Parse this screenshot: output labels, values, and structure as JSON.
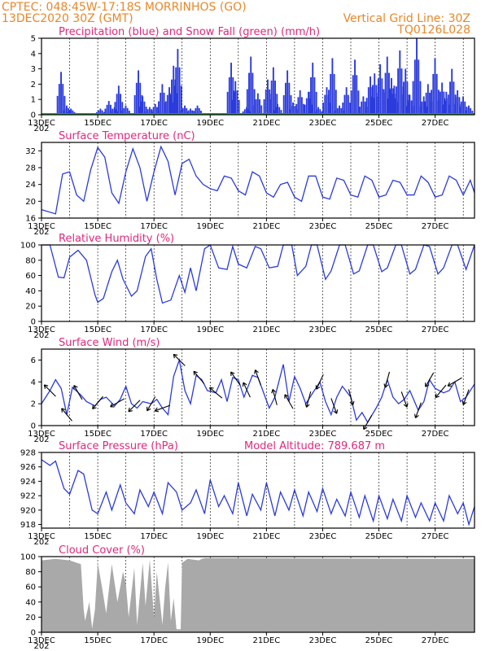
{
  "header": {
    "line1": "CPTEC:   048:45W-17:18S   MORRINHOS (GO)",
    "line2_left": "13DEC2020 30Z (GMT)",
    "line2_right": "Vertical Grid Line: 30Z",
    "line3_right": "TQ0126L028"
  },
  "colors": {
    "header": "#e8872a",
    "title": "#e0287c",
    "line": "#2b3bdc",
    "snow": "#22a33a",
    "cloud": "#a9a9a9",
    "grid": "#000000"
  },
  "chart_data": [
    {
      "type": "bar",
      "title": "Precipitation (blue) and Snow Fall (green) (mm/h)",
      "ylim": [
        0,
        5
      ],
      "yticks": [
        0,
        1,
        2,
        3,
        4,
        5
      ],
      "xticks": [
        "13DEC",
        "15DEC",
        "17DEC",
        "19DEC",
        "21DEC",
        "23DEC",
        "25DEC",
        "27DEC"
      ],
      "x_first_tick_extra": "202",
      "x_range_days": [
        0,
        15.4
      ],
      "snow_values": 0,
      "precip_peaks": [
        [
          0.7,
          2.8
        ],
        [
          0.9,
          0.6
        ],
        [
          1.05,
          0.4
        ],
        [
          2.1,
          0.4
        ],
        [
          2.4,
          0.9
        ],
        [
          2.6,
          0.5
        ],
        [
          2.75,
          1.9
        ],
        [
          3.0,
          0.6
        ],
        [
          3.45,
          2.9
        ],
        [
          3.6,
          1.2
        ],
        [
          3.85,
          0.5
        ],
        [
          4.05,
          0.7
        ],
        [
          4.3,
          2.0
        ],
        [
          4.55,
          1.8
        ],
        [
          4.7,
          3.2
        ],
        [
          4.85,
          4.3
        ],
        [
          5.1,
          0.6
        ],
        [
          5.3,
          0.4
        ],
        [
          5.55,
          0.6
        ],
        [
          6.75,
          3.4
        ],
        [
          6.9,
          2.2
        ],
        [
          7.3,
          0.5
        ],
        [
          7.45,
          3.8
        ],
        [
          7.7,
          1.4
        ],
        [
          8.05,
          2.3
        ],
        [
          8.25,
          3.1
        ],
        [
          8.4,
          0.7
        ],
        [
          8.75,
          2.9
        ],
        [
          8.95,
          0.8
        ],
        [
          9.2,
          1.6
        ],
        [
          9.5,
          1.5
        ],
        [
          9.65,
          3.4
        ],
        [
          9.85,
          0.5
        ],
        [
          10.15,
          1.8
        ],
        [
          10.35,
          3.7
        ],
        [
          10.6,
          0.6
        ],
        [
          10.85,
          1.8
        ],
        [
          11.15,
          3.6
        ],
        [
          11.45,
          1.2
        ],
        [
          11.7,
          2.5
        ],
        [
          11.85,
          2.7
        ],
        [
          12.05,
          3.3
        ],
        [
          12.3,
          3.8
        ],
        [
          12.45,
          2.4
        ],
        [
          12.55,
          1.9
        ],
        [
          12.75,
          4.2
        ],
        [
          12.95,
          3.0
        ],
        [
          13.1,
          1.3
        ],
        [
          13.35,
          5.0
        ],
        [
          13.6,
          1.2
        ],
        [
          13.75,
          2.0
        ],
        [
          14.0,
          3.7
        ],
        [
          14.25,
          2.1
        ],
        [
          14.4,
          1.5
        ],
        [
          14.6,
          3.0
        ],
        [
          14.8,
          1.6
        ],
        [
          15.0,
          1.2
        ],
        [
          15.2,
          0.6
        ]
      ]
    },
    {
      "type": "line",
      "title": "Surface Temperature (nC)",
      "ylim": [
        16,
        34
      ],
      "yticks": [
        16,
        20,
        24,
        28,
        32
      ],
      "xticks": [
        "13DEC",
        "15DEC",
        "17DEC",
        "19DEC",
        "21DEC",
        "23DEC",
        "25DEC",
        "27DEC"
      ],
      "x_first_tick_extra": "202",
      "series": [
        {
          "x": [
            0,
            0.5,
            0.75,
            1.0,
            1.25,
            1.5,
            1.75,
            2.0,
            2.25,
            2.5,
            2.75,
            3.0,
            3.25,
            3.5,
            3.75,
            4.0,
            4.25,
            4.5,
            4.75,
            5.0,
            5.25,
            5.5,
            5.75,
            6.0,
            6.25,
            6.5,
            6.75,
            7.0,
            7.25,
            7.5,
            7.75,
            8.0,
            8.25,
            8.5,
            8.75,
            9.0,
            9.25,
            9.5,
            9.75,
            10.0,
            10.25,
            10.5,
            10.75,
            11.0,
            11.25,
            11.5,
            11.75,
            12.0,
            12.25,
            12.5,
            12.75,
            13.0,
            13.25,
            13.5,
            13.75,
            14.0,
            14.25,
            14.5,
            14.75,
            15.0,
            15.25,
            15.4
          ],
          "y": [
            18,
            17,
            26.5,
            27,
            21.5,
            20,
            27.5,
            32.8,
            30.5,
            22,
            19.5,
            27,
            32.5,
            28,
            20,
            27,
            33,
            29.5,
            21.5,
            29,
            30,
            26,
            24,
            23,
            22.5,
            26,
            25.5,
            22.5,
            21.5,
            27,
            26,
            22,
            21,
            24,
            24.5,
            21,
            20,
            26,
            26,
            21,
            20.5,
            25.5,
            25,
            21.5,
            21,
            26,
            25,
            21,
            21.5,
            25,
            24.5,
            21.5,
            21.5,
            26,
            24.5,
            21,
            21.5,
            26,
            25,
            21.5,
            25,
            22
          ]
        }
      ]
    },
    {
      "type": "line",
      "title": "Relative Humidity (%)",
      "ylim": [
        0,
        100
      ],
      "yticks": [
        0,
        20,
        40,
        60,
        80,
        100
      ],
      "xticks": [
        "13DEC",
        "15DEC",
        "17DEC",
        "19DEC",
        "21DEC",
        "23DEC",
        "25DEC",
        "27DEC"
      ],
      "x_first_tick_extra": "202",
      "series": [
        {
          "x": [
            0,
            0.3,
            0.6,
            0.8,
            1.0,
            1.3,
            1.6,
            1.9,
            2.0,
            2.2,
            2.5,
            2.7,
            2.9,
            3.2,
            3.4,
            3.7,
            3.9,
            4.1,
            4.3,
            4.6,
            4.9,
            5.1,
            5.3,
            5.5,
            5.8,
            6.0,
            6.3,
            6.6,
            6.8,
            7.0,
            7.3,
            7.6,
            7.8,
            8.1,
            8.4,
            8.6,
            8.9,
            9.1,
            9.4,
            9.6,
            9.8,
            10.1,
            10.3,
            10.6,
            10.8,
            11.1,
            11.3,
            11.6,
            11.8,
            12.1,
            12.3,
            12.6,
            12.8,
            13.1,
            13.3,
            13.6,
            13.8,
            14.1,
            14.3,
            14.6,
            14.8,
            15.1,
            15.4
          ],
          "y": [
            100,
            100,
            58,
            57,
            84,
            93,
            80,
            35,
            25,
            30,
            65,
            80,
            55,
            33,
            40,
            85,
            95,
            55,
            24,
            28,
            60,
            38,
            70,
            40,
            95,
            100,
            70,
            68,
            98,
            75,
            70,
            98,
            95,
            70,
            72,
            100,
            100,
            60,
            72,
            100,
            100,
            55,
            66,
            100,
            100,
            62,
            66,
            100,
            100,
            65,
            70,
            100,
            100,
            62,
            68,
            100,
            98,
            62,
            70,
            100,
            100,
            68,
            100
          ]
        }
      ]
    },
    {
      "type": "line",
      "title": "Surface Wind (m/s)",
      "ylim": [
        0,
        7
      ],
      "yticks": [
        0,
        2,
        4,
        6
      ],
      "xticks": [
        "13DEC",
        "15DEC",
        "17DEC",
        "19DEC",
        "21DEC",
        "23DEC",
        "25DEC",
        "27DEC"
      ],
      "x_first_tick_extra": "202",
      "series": [
        {
          "x": [
            0,
            0.3,
            0.5,
            0.7,
            0.9,
            1.1,
            1.4,
            1.6,
            1.9,
            2.1,
            2.3,
            2.6,
            2.8,
            3.0,
            3.2,
            3.4,
            3.6,
            3.9,
            4.1,
            4.3,
            4.5,
            4.7,
            4.9,
            5.1,
            5.3,
            5.5,
            5.7,
            5.9,
            6.2,
            6.4,
            6.6,
            6.8,
            7.0,
            7.2,
            7.5,
            7.7,
            7.9,
            8.1,
            8.3,
            8.6,
            8.8,
            9.0,
            9.2,
            9.4,
            9.6,
            9.9,
            10.1,
            10.3,
            10.5,
            10.7,
            11.0,
            11.2,
            11.4,
            11.6,
            11.9,
            12.1,
            12.3,
            12.5,
            12.7,
            12.9,
            13.1,
            13.4,
            13.6,
            13.8,
            14.0,
            14.3,
            14.5,
            14.7,
            14.9,
            15.1,
            15.4
          ],
          "y": [
            2,
            3.2,
            4.2,
            3.4,
            1.0,
            3.5,
            2.8,
            2.2,
            1.8,
            2.4,
            2.6,
            1.8,
            2.4,
            3.6,
            2.0,
            1.6,
            2.2,
            2.0,
            2.4,
            1.6,
            1.0,
            4.5,
            6.0,
            3.2,
            2.0,
            4.6,
            4.2,
            3.2,
            3.0,
            4.2,
            2.2,
            4.4,
            4.2,
            2.6,
            4.6,
            4.4,
            3.0,
            1.6,
            2.6,
            5.6,
            2.2,
            4.5,
            3.4,
            2.0,
            2.8,
            4.0,
            2.2,
            1.0,
            2.6,
            3.6,
            2.6,
            0.5,
            1.2,
            0.3,
            1.6,
            2.6,
            4.2,
            2.6,
            2.0,
            2.4,
            3.2,
            1.4,
            2.2,
            4.2,
            3.4,
            3.0,
            3.2,
            4.0,
            2.2,
            2.6,
            3.8
          ]
        }
      ],
      "arrows": [
        [
          0.3,
          225
        ],
        [
          0.9,
          220
        ],
        [
          1.3,
          210
        ],
        [
          2.0,
          320
        ],
        [
          2.7,
          300
        ],
        [
          3.3,
          315
        ],
        [
          3.9,
          330
        ],
        [
          4.3,
          290
        ],
        [
          4.9,
          225
        ],
        [
          5.6,
          220
        ],
        [
          6.2,
          230
        ],
        [
          6.9,
          215
        ],
        [
          7.3,
          205
        ],
        [
          7.7,
          200
        ],
        [
          8.3,
          195
        ],
        [
          8.8,
          210
        ],
        [
          9.5,
          345
        ],
        [
          9.9,
          335
        ],
        [
          10.4,
          20
        ],
        [
          11.0,
          15
        ],
        [
          11.6,
          330
        ],
        [
          12.3,
          345
        ],
        [
          12.9,
          20
        ],
        [
          13.4,
          340
        ],
        [
          13.8,
          330
        ],
        [
          14.2,
          320
        ],
        [
          14.7,
          300
        ],
        [
          15.1,
          340
        ]
      ]
    },
    {
      "type": "line",
      "title": "Surface Pressure (hPa)",
      "annotation": "Model Altitude: 789.687  m",
      "ylim": [
        917.5,
        928
      ],
      "yticks": [
        918,
        920,
        922,
        924,
        926,
        928
      ],
      "xticks": [
        "13DEC",
        "15DEC",
        "17DEC",
        "19DEC",
        "21DEC",
        "23DEC",
        "25DEC",
        "27DEC"
      ],
      "x_first_tick_extra": "202",
      "series": [
        {
          "x": [
            0,
            0.3,
            0.5,
            0.8,
            1.0,
            1.3,
            1.5,
            1.8,
            2.0,
            2.3,
            2.5,
            2.8,
            3.0,
            3.3,
            3.5,
            3.8,
            4.0,
            4.3,
            4.5,
            4.8,
            5.0,
            5.3,
            5.5,
            5.8,
            6.0,
            6.3,
            6.5,
            6.8,
            7.0,
            7.3,
            7.5,
            7.8,
            8.0,
            8.3,
            8.5,
            8.8,
            9.0,
            9.3,
            9.5,
            9.8,
            10.0,
            10.3,
            10.5,
            10.8,
            11.0,
            11.3,
            11.5,
            11.8,
            12.0,
            12.3,
            12.5,
            12.8,
            13.0,
            13.3,
            13.5,
            13.8,
            14.0,
            14.3,
            14.5,
            14.8,
            15.0,
            15.2,
            15.4
          ],
          "y": [
            927,
            926.2,
            926.8,
            923,
            922.2,
            925.5,
            925,
            920,
            919.5,
            922.5,
            920,
            923.5,
            921,
            919.5,
            922.8,
            920.5,
            922.5,
            919.5,
            923.8,
            922.5,
            920,
            921,
            922.8,
            919.5,
            924.2,
            920.5,
            922,
            919.5,
            923.8,
            919.2,
            922.2,
            920,
            923.8,
            919.2,
            922.5,
            920,
            922.8,
            919.2,
            922.5,
            919.8,
            923,
            919.5,
            921.5,
            919.2,
            922.5,
            919,
            922,
            918.5,
            922,
            918.8,
            921.5,
            918.5,
            922,
            919,
            921,
            918.5,
            921,
            918.5,
            922,
            919.5,
            921,
            918,
            920.5
          ]
        }
      ]
    },
    {
      "type": "area",
      "title": "Cloud Cover (%)",
      "ylim": [
        0,
        100
      ],
      "yticks": [
        0,
        20,
        40,
        60,
        80,
        100
      ],
      "xticks": [
        "13DEC",
        "15DEC",
        "17DEC",
        "19DEC",
        "21DEC",
        "23DEC",
        "25DEC",
        "27DEC"
      ],
      "x_first_tick_extra": "202",
      "series": [
        {
          "x": [
            0,
            0.5,
            1.0,
            1.4,
            1.5,
            1.55,
            1.7,
            1.8,
            1.9,
            2.0,
            2.15,
            2.3,
            2.5,
            2.7,
            2.9,
            3.0,
            3.1,
            3.3,
            3.4,
            3.6,
            3.7,
            3.85,
            4.0,
            4.1,
            4.3,
            4.4,
            4.5,
            4.6,
            4.7,
            4.8,
            4.95,
            5.0,
            5.2,
            5.4,
            5.6,
            5.7,
            5.8,
            15.4
          ],
          "y": [
            95,
            97,
            95,
            90,
            30,
            15,
            40,
            5,
            30,
            92,
            60,
            25,
            90,
            40,
            80,
            65,
            20,
            85,
            10,
            92,
            35,
            96,
            20,
            80,
            10,
            60,
            92,
            15,
            45,
            4,
            4,
            92,
            97,
            96,
            95,
            97,
            98,
            97
          ]
        }
      ]
    }
  ]
}
